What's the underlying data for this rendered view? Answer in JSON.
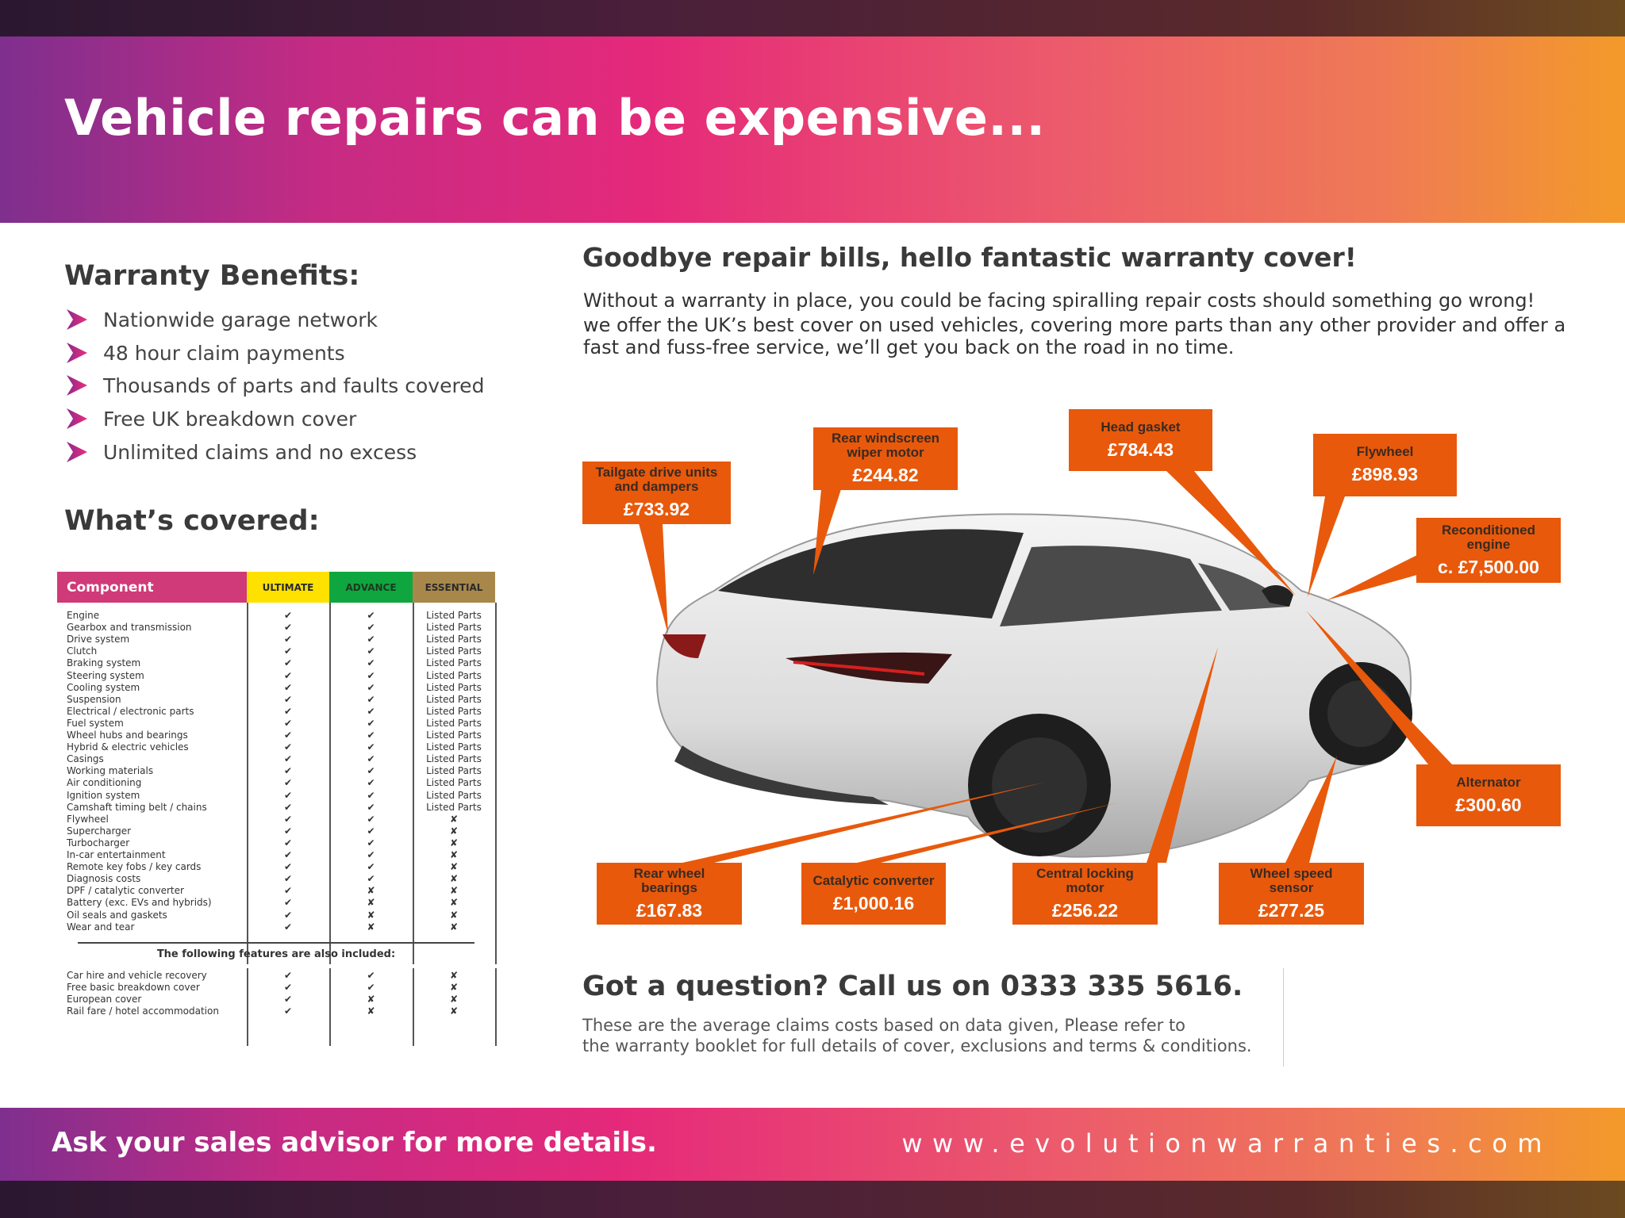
{
  "header": {
    "title": "Vehicle repairs can be expensive..."
  },
  "benefits": {
    "heading": "Warranty Benefits:",
    "items": [
      "Nationwide garage network",
      "48 hour claim payments",
      "Thousands of parts and faults covered",
      "Free UK breakdown cover",
      "Unlimited claims and no excess"
    ],
    "icon": "chevron-arrow-icon"
  },
  "covered": {
    "heading": "What’s covered:",
    "columns": [
      "Component",
      "ULTIMATE",
      "ADVANCE",
      "ESSENTIAL"
    ],
    "column_colors": [
      "#d03a78",
      "#ffe100",
      "#0fa640",
      "#a8884a"
    ],
    "rows": [
      [
        "Engine",
        "✔",
        "✔",
        "Listed Parts"
      ],
      [
        "Gearbox and transmission",
        "✔",
        "✔",
        "Listed Parts"
      ],
      [
        "Drive system",
        "✔",
        "✔",
        "Listed Parts"
      ],
      [
        "Clutch",
        "✔",
        "✔",
        "Listed Parts"
      ],
      [
        "Braking system",
        "✔",
        "✔",
        "Listed Parts"
      ],
      [
        "Steering system",
        "✔",
        "✔",
        "Listed Parts"
      ],
      [
        "Cooling system",
        "✔",
        "✔",
        "Listed Parts"
      ],
      [
        "Suspension",
        "✔",
        "✔",
        "Listed Parts"
      ],
      [
        "Electrical / electronic parts",
        "✔",
        "✔",
        "Listed Parts"
      ],
      [
        "Fuel system",
        "✔",
        "✔",
        "Listed Parts"
      ],
      [
        "Wheel hubs and bearings",
        "✔",
        "✔",
        "Listed Parts"
      ],
      [
        "Hybrid & electric vehicles",
        "✔",
        "✔",
        "Listed Parts"
      ],
      [
        "Casings",
        "✔",
        "✔",
        "Listed Parts"
      ],
      [
        "Working materials",
        "✔",
        "✔",
        "Listed Parts"
      ],
      [
        "Air conditioning",
        "✔",
        "✔",
        "Listed Parts"
      ],
      [
        "Ignition system",
        "✔",
        "✔",
        "Listed Parts"
      ],
      [
        "Camshaft timing belt / chains",
        "✔",
        "✔",
        "Listed Parts"
      ],
      [
        "Flywheel",
        "✔",
        "✔",
        "✘"
      ],
      [
        "Supercharger",
        "✔",
        "✔",
        "✘"
      ],
      [
        "Turbocharger",
        "✔",
        "✔",
        "✘"
      ],
      [
        "In-car entertainment",
        "✔",
        "✔",
        "✘"
      ],
      [
        "Remote key fobs / key cards",
        "✔",
        "✔",
        "✘"
      ],
      [
        "Diagnosis costs",
        "✔",
        "✔",
        "✘"
      ],
      [
        "DPF / catalytic converter",
        "✔",
        "✘",
        "✘"
      ],
      [
        "Battery (exc. EVs and hybrids)",
        "✔",
        "✘",
        "✘"
      ],
      [
        "Oil seals and gaskets",
        "✔",
        "✘",
        "✘"
      ],
      [
        "Wear and tear",
        "✔",
        "✘",
        "✘"
      ]
    ],
    "extras_heading": "The following features are also included:",
    "extras": [
      [
        "Car hire and vehicle recovery",
        "✔",
        "✔",
        "✘"
      ],
      [
        "Free basic breakdown cover",
        "✔",
        "✔",
        "✘"
      ],
      [
        "European cover",
        "✔",
        "✘",
        "✘"
      ],
      [
        "Rail fare / hotel accommodation",
        "✔",
        "✘",
        "✘"
      ]
    ]
  },
  "intro": {
    "heading": "Goodbye repair bills, hello fantastic warranty cover!",
    "lines": [
      "Without a warranty in place, you could be facing spiralling repair costs should something go wrong!",
      "we offer the UK’s best cover on used vehicles, covering more parts than any other provider and offer a",
      "fast and fuss-free service, we’ll get you back on the road in no time."
    ]
  },
  "callouts": [
    {
      "label": "Tailgate drive units and dampers",
      "price": "£733.92"
    },
    {
      "label": "Rear windscreen wiper motor",
      "price": "£244.82"
    },
    {
      "label": "Head gasket",
      "price": "£784.43"
    },
    {
      "label": "Flywheel",
      "price": "£898.93"
    },
    {
      "label": "Reconditioned engine",
      "price": "c. £7,500.00"
    },
    {
      "label": "Alternator",
      "price": "£300.60"
    },
    {
      "label": "Rear wheel bearings",
      "price": "£167.83"
    },
    {
      "label": "Catalytic converter",
      "price": "£1,000.16"
    },
    {
      "label": "Central locking motor",
      "price": "£256.22"
    },
    {
      "label": "Wheel speed sensor",
      "price": "£277.25"
    }
  ],
  "callout_color": "#e8590c",
  "question": {
    "heading": "Got a question? Call us on 0333 335 5616.",
    "lines": [
      "These are the average claims costs based on data given, Please refer to",
      "the warranty booklet for full details of cover, exclusions and terms & conditions."
    ]
  },
  "footer": {
    "left": "Ask your sales advisor for more details.",
    "url": "www.evolutionwarranties.com"
  }
}
